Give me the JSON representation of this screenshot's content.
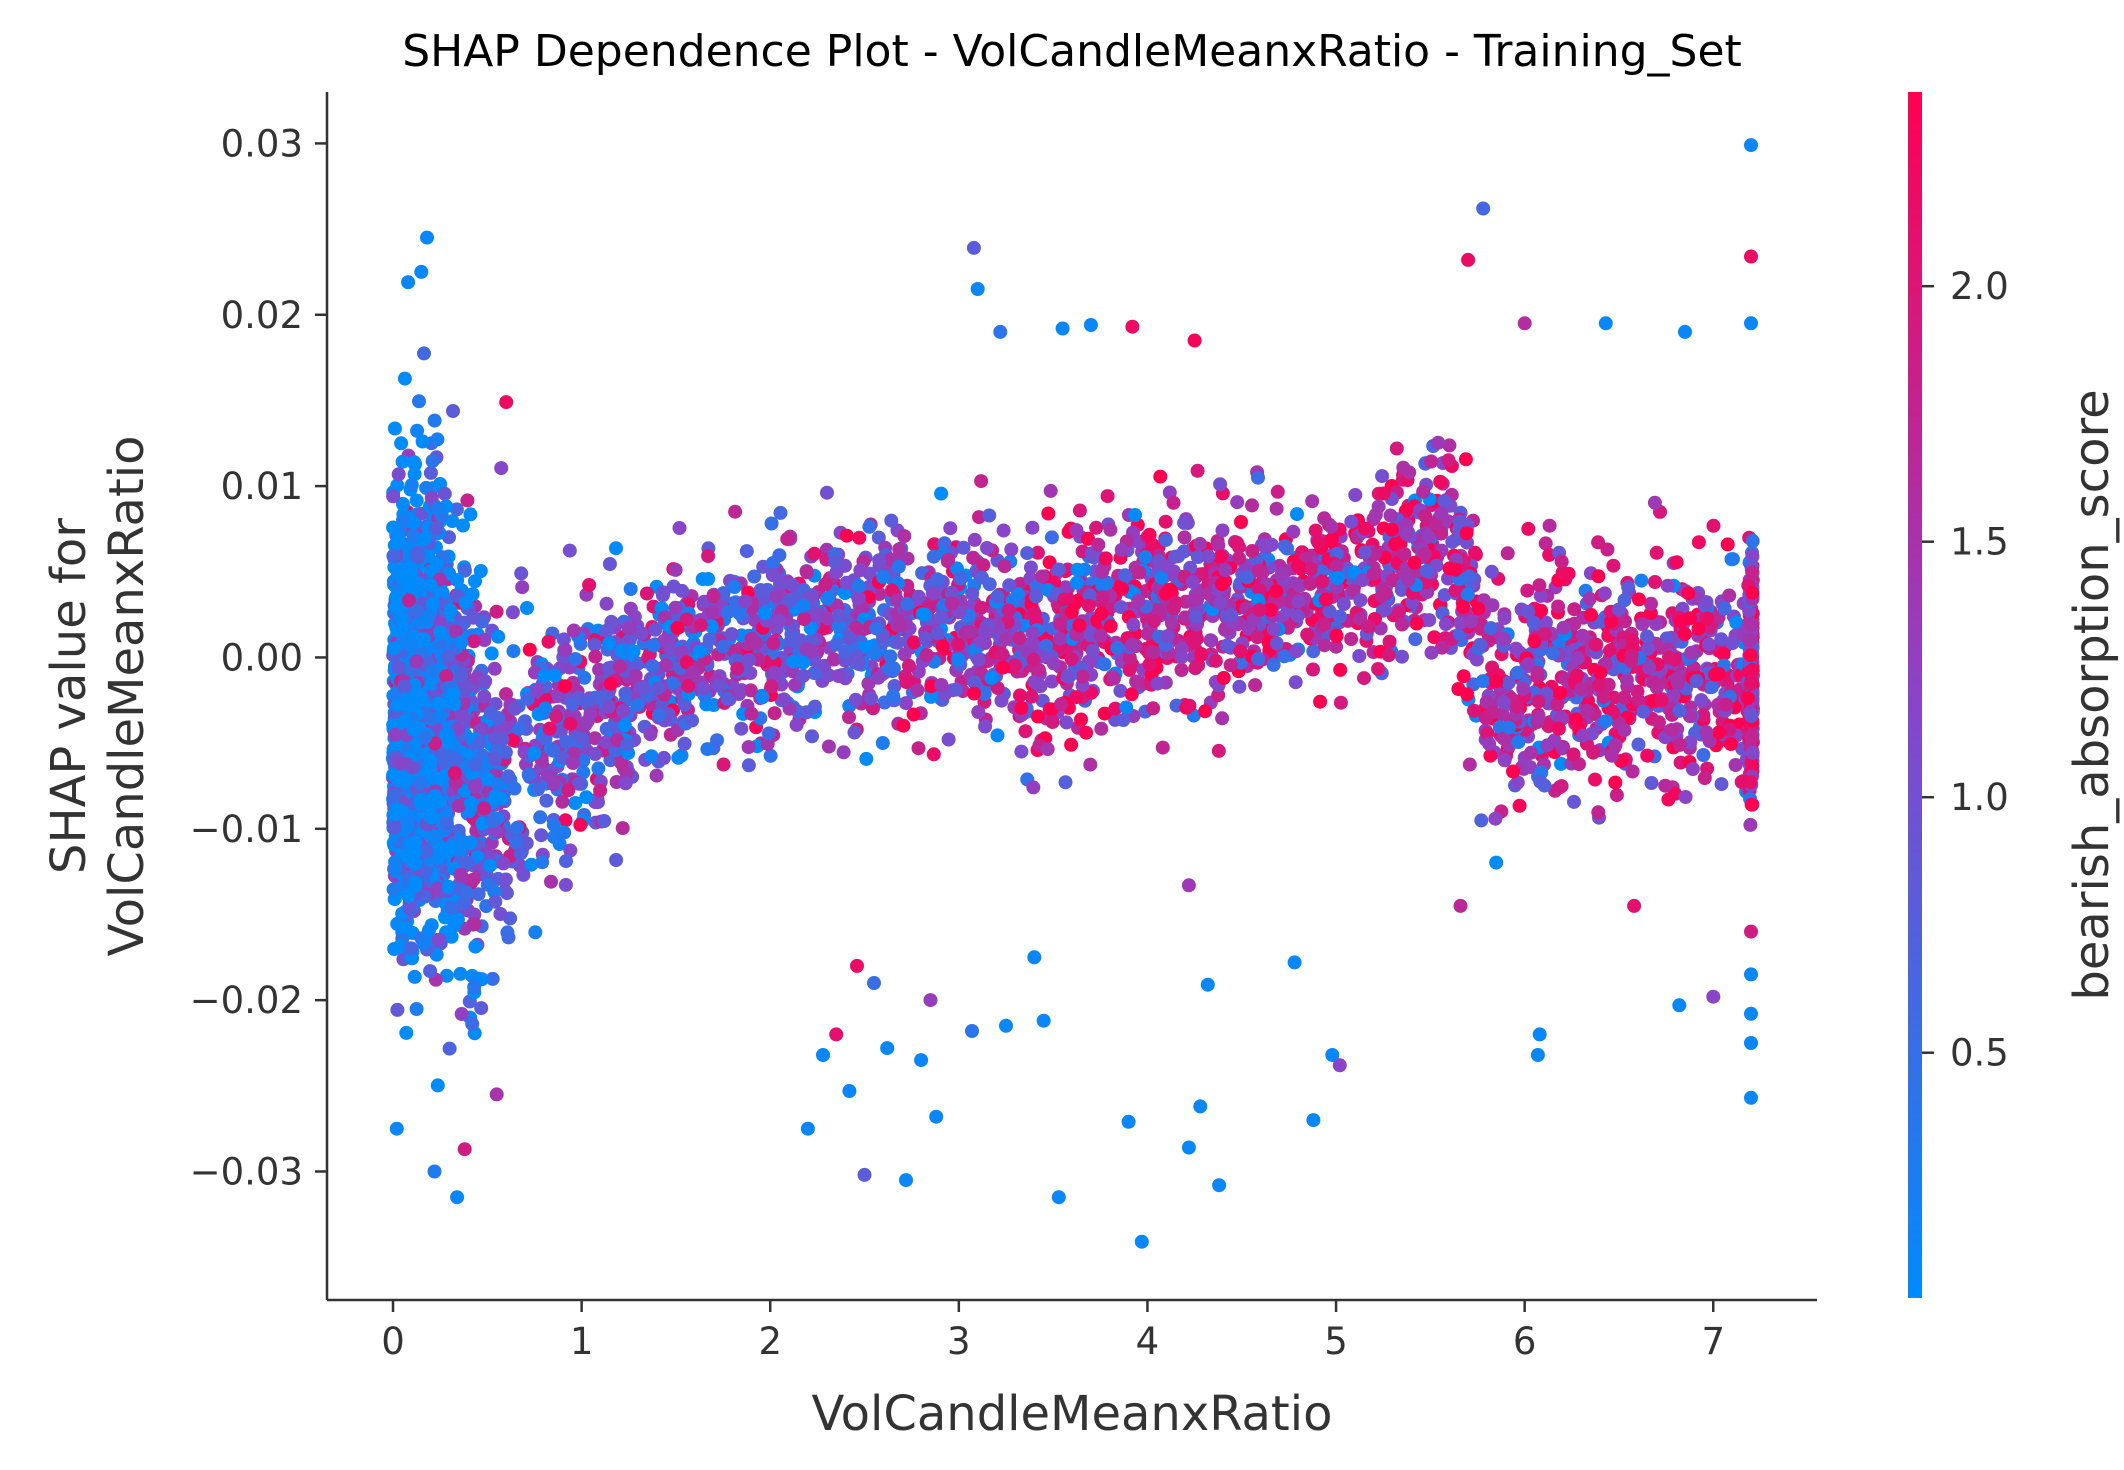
{
  "chart_data": {
    "type": "scatter",
    "title": "SHAP Dependence Plot - VolCandleMeanxRatio - Training_Set",
    "xlabel": "VolCandleMeanxRatio",
    "ylabel_lines": [
      "SHAP value for",
      "VolCandleMeanxRatio"
    ],
    "colorbar_label": "bearish_absorption_score",
    "xlim": [
      -0.35,
      7.55
    ],
    "ylim": [
      -0.0375,
      0.033
    ],
    "x_ticks": [
      0,
      1,
      2,
      3,
      4,
      5,
      6,
      7
    ],
    "x_tick_labels": [
      "0",
      "1",
      "2",
      "3",
      "4",
      "5",
      "6",
      "7"
    ],
    "y_ticks": [
      0.03,
      0.02,
      0.01,
      0.0,
      -0.01,
      -0.02,
      -0.03
    ],
    "y_tick_labels": [
      "0.03",
      "0.02",
      "0.01",
      "0.00",
      "−0.01",
      "−0.02",
      "−0.03"
    ],
    "colorbar_range": [
      0.02,
      2.38
    ],
    "colorbar_ticks": [
      0.5,
      1.0,
      1.5,
      2.0
    ],
    "colorbar_tick_labels": [
      "0.5",
      "1.0",
      "1.5",
      "2.0"
    ],
    "colormap": [
      "#008bfb",
      "#ff0051"
    ],
    "grid": false,
    "density_profile": [
      {
        "x": 0.0,
        "y_center": -0.003,
        "y_spread": 0.011,
        "color_center": 0.15
      },
      {
        "x": 0.2,
        "y_center": -0.003,
        "y_spread": 0.012,
        "color_center": 0.25
      },
      {
        "x": 0.5,
        "y_center": -0.008,
        "y_spread": 0.009,
        "color_center": 0.8
      },
      {
        "x": 1.0,
        "y_center": -0.004,
        "y_spread": 0.006,
        "color_center": 1.0
      },
      {
        "x": 1.5,
        "y_center": 0.0,
        "y_spread": 0.005,
        "color_center": 1.0
      },
      {
        "x": 2.0,
        "y_center": 0.001,
        "y_spread": 0.005,
        "color_center": 1.1
      },
      {
        "x": 2.5,
        "y_center": 0.002,
        "y_spread": 0.005,
        "color_center": 1.1
      },
      {
        "x": 3.0,
        "y_center": 0.002,
        "y_spread": 0.005,
        "color_center": 1.2
      },
      {
        "x": 3.5,
        "y_center": 0.001,
        "y_spread": 0.006,
        "color_center": 1.6
      },
      {
        "x": 4.0,
        "y_center": 0.003,
        "y_spread": 0.005,
        "color_center": 1.6
      },
      {
        "x": 4.5,
        "y_center": 0.003,
        "y_spread": 0.005,
        "color_center": 1.5
      },
      {
        "x": 5.0,
        "y_center": 0.004,
        "y_spread": 0.004,
        "color_center": 1.6
      },
      {
        "x": 5.6,
        "y_center": 0.007,
        "y_spread": 0.006,
        "color_center": 1.5
      },
      {
        "x": 5.8,
        "y_center": -0.002,
        "y_spread": 0.006,
        "color_center": 1.5
      },
      {
        "x": 6.5,
        "y_center": -0.001,
        "y_spread": 0.005,
        "color_center": 1.5
      },
      {
        "x": 7.2,
        "y_center": -0.001,
        "y_spread": 0.006,
        "color_center": 1.6
      }
    ],
    "outliers": [
      {
        "x": 0.18,
        "y": 0.0245,
        "c": 0.1
      },
      {
        "x": 0.15,
        "y": 0.0225,
        "c": 0.1
      },
      {
        "x": 0.08,
        "y": 0.0219,
        "c": 0.1
      },
      {
        "x": 0.02,
        "y": -0.0275,
        "c": 0.1
      },
      {
        "x": 0.34,
        "y": -0.0315,
        "c": 0.1
      },
      {
        "x": 0.22,
        "y": -0.03,
        "c": 0.3
      },
      {
        "x": 0.38,
        "y": -0.0287,
        "c": 1.9
      },
      {
        "x": 0.6,
        "y": 0.0149,
        "c": 2.2
      },
      {
        "x": 0.55,
        "y": -0.0255,
        "c": 1.5
      },
      {
        "x": 3.08,
        "y": 0.0239,
        "c": 0.8
      },
      {
        "x": 3.1,
        "y": 0.0215,
        "c": 0.1
      },
      {
        "x": 3.22,
        "y": 0.019,
        "c": 0.4
      },
      {
        "x": 3.55,
        "y": 0.0192,
        "c": 0.1
      },
      {
        "x": 3.7,
        "y": 0.0194,
        "c": 0.1
      },
      {
        "x": 3.92,
        "y": 0.0193,
        "c": 2.2
      },
      {
        "x": 4.25,
        "y": 0.0185,
        "c": 2.3
      },
      {
        "x": 5.78,
        "y": 0.0262,
        "c": 0.6
      },
      {
        "x": 5.7,
        "y": 0.0232,
        "c": 2.2
      },
      {
        "x": 6.0,
        "y": 0.0195,
        "c": 1.6
      },
      {
        "x": 6.43,
        "y": 0.0195,
        "c": 0.1
      },
      {
        "x": 6.85,
        "y": 0.019,
        "c": 0.1
      },
      {
        "x": 7.2,
        "y": 0.0299,
        "c": 0.1
      },
      {
        "x": 7.2,
        "y": 0.0234,
        "c": 2.2
      },
      {
        "x": 7.2,
        "y": 0.0195,
        "c": 0.1
      },
      {
        "x": 3.97,
        "y": -0.0341,
        "c": 0.1
      },
      {
        "x": 3.53,
        "y": -0.0315,
        "c": 0.1
      },
      {
        "x": 4.38,
        "y": -0.0308,
        "c": 0.1
      },
      {
        "x": 2.5,
        "y": -0.0302,
        "c": 0.8
      },
      {
        "x": 2.72,
        "y": -0.0305,
        "c": 0.1
      },
      {
        "x": 4.22,
        "y": -0.0286,
        "c": 0.1
      },
      {
        "x": 4.28,
        "y": -0.0262,
        "c": 0.1
      },
      {
        "x": 3.9,
        "y": -0.0271,
        "c": 0.1
      },
      {
        "x": 4.88,
        "y": -0.027,
        "c": 0.1
      },
      {
        "x": 2.2,
        "y": -0.0275,
        "c": 0.1
      },
      {
        "x": 2.88,
        "y": -0.0268,
        "c": 0.1
      },
      {
        "x": 2.42,
        "y": -0.0253,
        "c": 0.1
      },
      {
        "x": 4.98,
        "y": -0.0232,
        "c": 0.1
      },
      {
        "x": 5.02,
        "y": -0.0238,
        "c": 1.2
      },
      {
        "x": 6.07,
        "y": -0.0232,
        "c": 0.1
      },
      {
        "x": 6.08,
        "y": -0.022,
        "c": 0.1
      },
      {
        "x": 6.82,
        "y": -0.0203,
        "c": 0.1
      },
      {
        "x": 7.0,
        "y": -0.0198,
        "c": 1.2
      },
      {
        "x": 7.2,
        "y": -0.0257,
        "c": 0.1
      },
      {
        "x": 7.2,
        "y": -0.0225,
        "c": 0.1
      },
      {
        "x": 7.2,
        "y": -0.0208,
        "c": 0.1
      },
      {
        "x": 7.2,
        "y": -0.0185,
        "c": 0.1
      },
      {
        "x": 7.2,
        "y": -0.016,
        "c": 1.9
      },
      {
        "x": 4.32,
        "y": -0.0191,
        "c": 0.1
      },
      {
        "x": 4.78,
        "y": -0.0178,
        "c": 0.1
      },
      {
        "x": 3.4,
        "y": -0.0175,
        "c": 0.1
      },
      {
        "x": 3.07,
        "y": -0.0218,
        "c": 0.4
      },
      {
        "x": 3.25,
        "y": -0.0215,
        "c": 0.1
      },
      {
        "x": 3.45,
        "y": -0.0212,
        "c": 0.1
      },
      {
        "x": 2.62,
        "y": -0.0228,
        "c": 0.1
      },
      {
        "x": 2.8,
        "y": -0.0235,
        "c": 0.1
      },
      {
        "x": 2.28,
        "y": -0.0232,
        "c": 0.1
      },
      {
        "x": 2.35,
        "y": -0.022,
        "c": 2.1
      },
      {
        "x": 2.46,
        "y": -0.018,
        "c": 2.2
      },
      {
        "x": 2.55,
        "y": -0.019,
        "c": 0.5
      },
      {
        "x": 2.85,
        "y": -0.02,
        "c": 1.3
      },
      {
        "x": 5.66,
        "y": -0.0145,
        "c": 1.7
      },
      {
        "x": 6.58,
        "y": -0.0145,
        "c": 2.1
      },
      {
        "x": 4.22,
        "y": -0.0133,
        "c": 1.4
      }
    ]
  }
}
